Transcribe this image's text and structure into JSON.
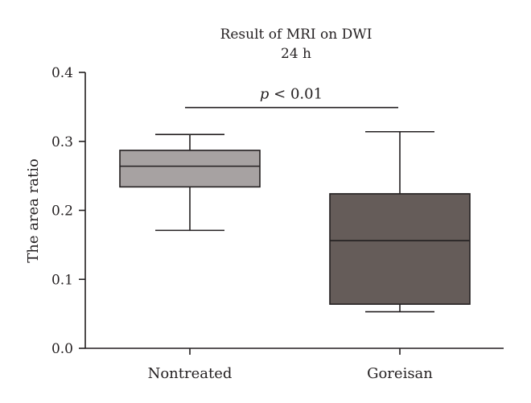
{
  "chart_data": {
    "type": "box",
    "title": "Result of MRI on DWI",
    "subtitle": "24 h",
    "xlabel": "",
    "ylabel": "The area ratio",
    "ylim": [
      0.0,
      0.4
    ],
    "yticks": [
      0.0,
      0.1,
      0.2,
      0.3,
      0.4
    ],
    "ytick_labels": [
      "0.0",
      "0.1",
      "0.2",
      "0.3",
      "0.4"
    ],
    "categories": [
      "Nontreated",
      "Goreisan"
    ],
    "boxes": [
      {
        "category": "Nontreated",
        "min": 0.171,
        "q1": 0.234,
        "median": 0.264,
        "q3": 0.287,
        "max": 0.31,
        "color": "#a7a2a2"
      },
      {
        "category": "Goreisan",
        "min": 0.053,
        "q1": 0.064,
        "median": 0.156,
        "q3": 0.224,
        "max": 0.314,
        "color": "#655c59"
      }
    ],
    "annotation": {
      "italic": "p",
      "text": " < 0.01",
      "y": 0.349
    },
    "grid": false,
    "legend": "none"
  }
}
